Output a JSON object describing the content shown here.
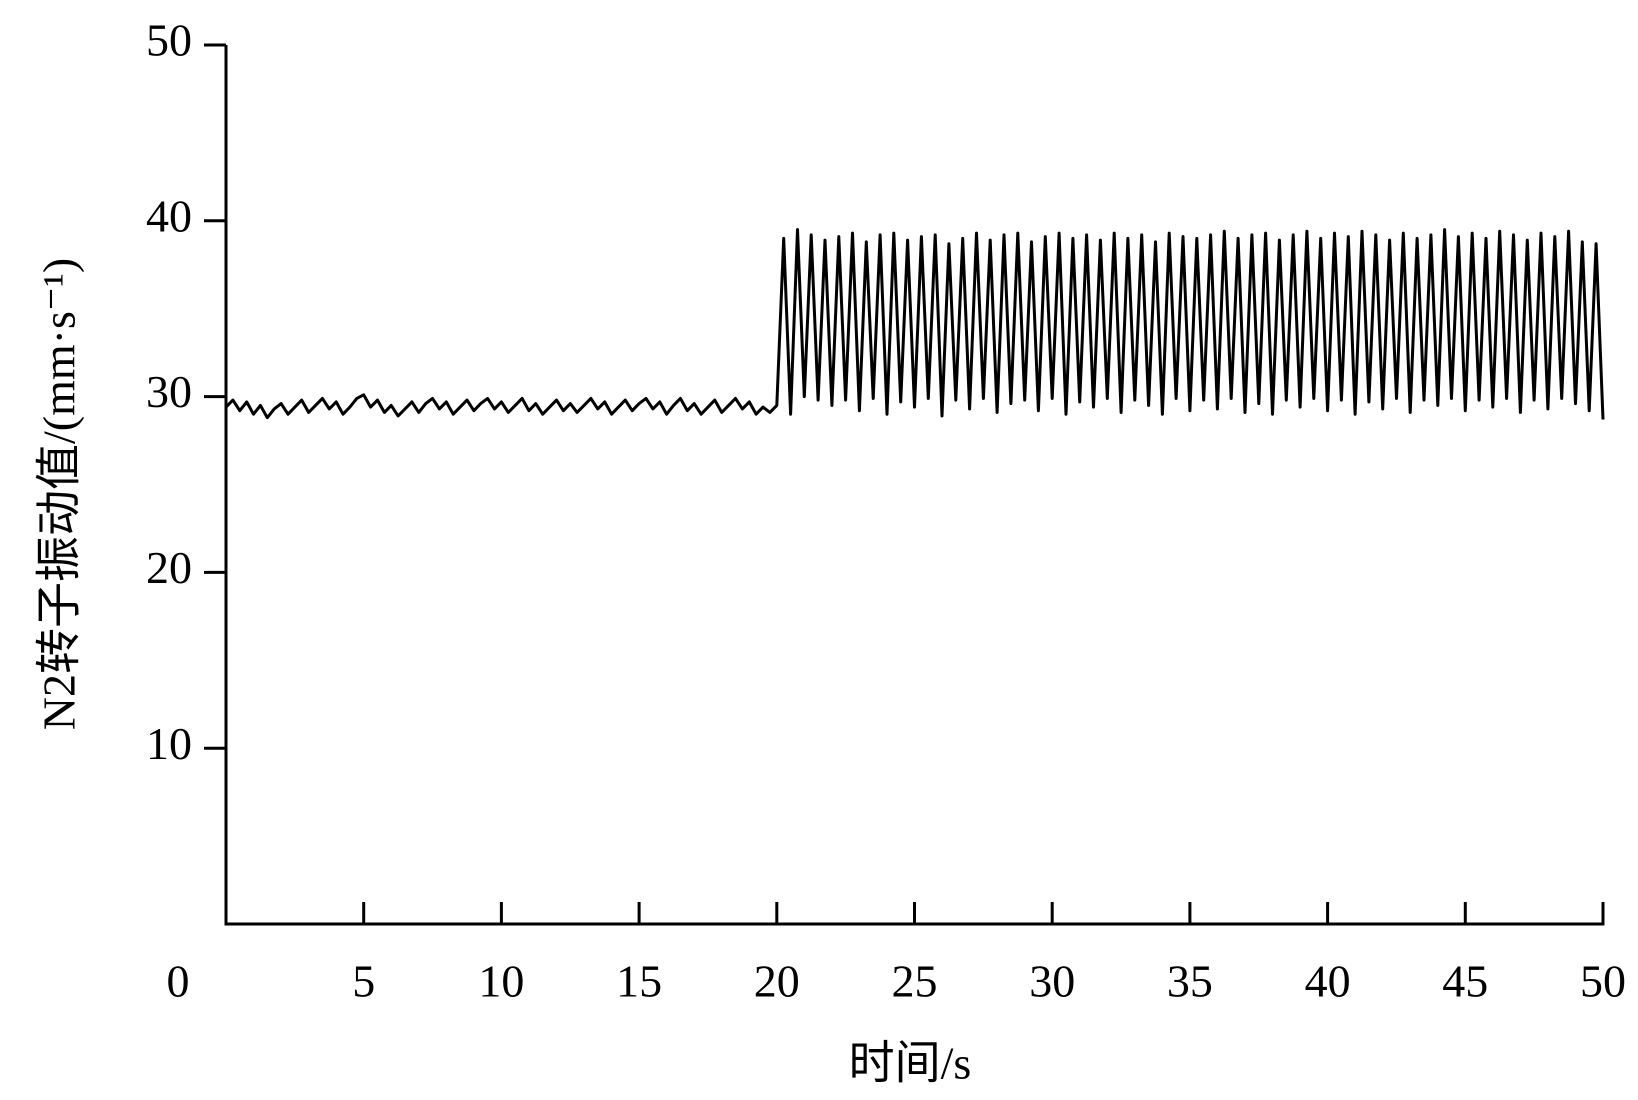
{
  "chart_data": {
    "type": "line",
    "xlabel": "时间/s",
    "ylabel": "N2转子振动值/(mm·s⁻¹)",
    "xlim": [
      0,
      50
    ],
    "xticks": [
      0,
      5,
      10,
      15,
      20,
      25,
      30,
      35,
      40,
      45,
      50
    ],
    "ylim": [
      0,
      50
    ],
    "yticks": [
      10,
      20,
      30,
      40,
      50
    ],
    "grid": false,
    "x": [
      0,
      0.25,
      0.5,
      0.75,
      1,
      1.25,
      1.5,
      1.75,
      2,
      2.25,
      2.5,
      2.75,
      3,
      3.25,
      3.5,
      3.75,
      4,
      4.25,
      4.5,
      4.75,
      5,
      5.25,
      5.5,
      5.75,
      6,
      6.25,
      6.5,
      6.75,
      7,
      7.25,
      7.5,
      7.75,
      8,
      8.25,
      8.5,
      8.75,
      9,
      9.25,
      9.5,
      9.75,
      10,
      10.25,
      10.5,
      10.75,
      11,
      11.25,
      11.5,
      11.75,
      12,
      12.25,
      12.5,
      12.75,
      13,
      13.25,
      13.5,
      13.75,
      14,
      14.25,
      14.5,
      14.75,
      15,
      15.25,
      15.5,
      15.75,
      16,
      16.25,
      16.5,
      16.75,
      17,
      17.25,
      17.5,
      17.75,
      18,
      18.25,
      18.5,
      18.75,
      19,
      19.25,
      19.5,
      19.75,
      20,
      20.25,
      20.5,
      20.75,
      21,
      21.25,
      21.5,
      21.75,
      22,
      22.25,
      22.5,
      22.75,
      23,
      23.25,
      23.5,
      23.75,
      24,
      24.25,
      24.5,
      24.75,
      25,
      25.25,
      25.5,
      25.75,
      26,
      26.25,
      26.5,
      26.75,
      27,
      27.25,
      27.5,
      27.75,
      28,
      28.25,
      28.5,
      28.75,
      29,
      29.25,
      29.5,
      29.75,
      30,
      30.25,
      30.5,
      30.75,
      31,
      31.25,
      31.5,
      31.75,
      32,
      32.25,
      32.5,
      32.75,
      33,
      33.25,
      33.5,
      33.75,
      34,
      34.25,
      34.5,
      34.75,
      35,
      35.25,
      35.5,
      35.75,
      36,
      36.25,
      36.5,
      36.75,
      37,
      37.25,
      37.5,
      37.75,
      38,
      38.25,
      38.5,
      38.75,
      39,
      39.25,
      39.5,
      39.75,
      40,
      40.25,
      40.5,
      40.75,
      41,
      41.25,
      41.5,
      41.75,
      42,
      42.25,
      42.5,
      42.75,
      43,
      43.25,
      43.5,
      43.75,
      44,
      44.25,
      44.5,
      44.75,
      45,
      45.25,
      45.5,
      45.75,
      46,
      46.25,
      46.5,
      46.75,
      47,
      47.25,
      47.5,
      47.75,
      48,
      48.25,
      48.5,
      48.75,
      49,
      49.25,
      49.5,
      49.75,
      50
    ],
    "series": [
      {
        "color": "#000000",
        "values": [
          29.4,
          29.8,
          29.2,
          29.7,
          29.0,
          29.5,
          28.8,
          29.3,
          29.6,
          29.0,
          29.4,
          29.8,
          29.1,
          29.5,
          29.9,
          29.3,
          29.7,
          29.0,
          29.4,
          29.9,
          30.1,
          29.4,
          29.8,
          29.1,
          29.5,
          28.9,
          29.3,
          29.7,
          29.1,
          29.6,
          29.9,
          29.3,
          29.7,
          29.0,
          29.4,
          29.8,
          29.2,
          29.6,
          29.9,
          29.3,
          29.7,
          29.1,
          29.5,
          29.9,
          29.2,
          29.6,
          29.0,
          29.4,
          29.8,
          29.2,
          29.6,
          29.1,
          29.5,
          29.9,
          29.3,
          29.7,
          29.0,
          29.4,
          29.8,
          29.2,
          29.6,
          29.9,
          29.3,
          29.7,
          29.0,
          29.5,
          29.9,
          29.2,
          29.6,
          29.0,
          29.4,
          29.8,
          29.1,
          29.5,
          29.9,
          29.3,
          29.7,
          29.0,
          29.4,
          29.1,
          29.5,
          39.0,
          29.0,
          39.5,
          30.0,
          39.2,
          29.8,
          38.9,
          29.5,
          39.1,
          29.8,
          39.3,
          29.2,
          38.8,
          29.9,
          39.2,
          29.0,
          39.3,
          29.7,
          38.9,
          29.4,
          39.1,
          29.9,
          39.2,
          28.9,
          38.7,
          29.8,
          39.0,
          29.3,
          39.3,
          29.9,
          38.9,
          29.1,
          39.2,
          29.6,
          39.3,
          29.8,
          38.8,
          29.2,
          39.1,
          29.9,
          39.3,
          29.0,
          39.0,
          29.7,
          39.2,
          29.4,
          38.9,
          29.9,
          39.3,
          29.1,
          39.0,
          29.8,
          39.2,
          29.5,
          38.8,
          29.0,
          39.3,
          29.9,
          39.1,
          29.2,
          39.0,
          29.8,
          39.2,
          29.3,
          39.4,
          29.9,
          39.0,
          29.1,
          39.2,
          29.6,
          39.3,
          29.0,
          38.9,
          29.8,
          39.2,
          29.4,
          39.4,
          29.9,
          39.0,
          29.2,
          39.3,
          29.8,
          39.1,
          29.0,
          39.4,
          29.7,
          39.2,
          29.3,
          38.9,
          29.9,
          39.3,
          29.1,
          39.0,
          29.8,
          39.2,
          29.5,
          39.5,
          29.9,
          39.1,
          29.2,
          39.3,
          29.8,
          39.0,
          29.4,
          39.4,
          29.9,
          39.2,
          29.1,
          38.9,
          29.8,
          39.3,
          29.3,
          39.1,
          29.9,
          39.4,
          29.6,
          38.8,
          29.2,
          38.7,
          28.7
        ]
      }
    ]
  }
}
